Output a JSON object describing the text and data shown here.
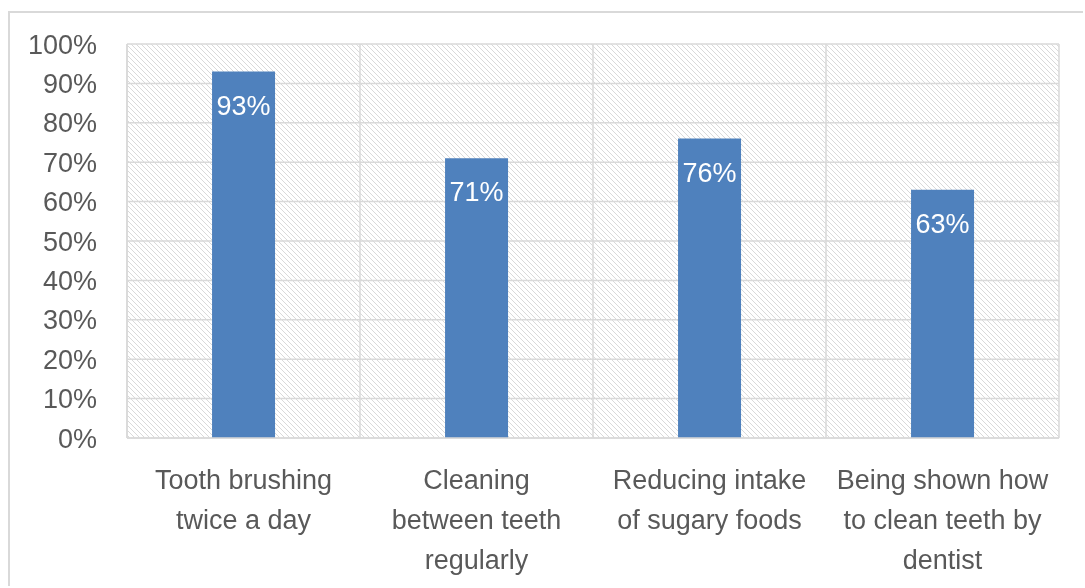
{
  "chart_data": {
    "type": "bar",
    "categories": [
      "Tooth brushing twice a day",
      "Cleaning between teeth regularly",
      "Reducing intake of sugary foods",
      "Being shown how to clean teeth by dentist"
    ],
    "values": [
      93,
      71,
      76,
      63
    ],
    "color": "#4f81bd",
    "value_labels": [
      "93%",
      "71%",
      "76%",
      "63%"
    ],
    "ylim": [
      0,
      100
    ],
    "yticks": [
      {
        "value": 0,
        "label": "0%"
      },
      {
        "value": 10,
        "label": "10%"
      },
      {
        "value": 20,
        "label": "20%"
      },
      {
        "value": 30,
        "label": "30%"
      },
      {
        "value": 40,
        "label": "40%"
      },
      {
        "value": 50,
        "label": "50%"
      },
      {
        "value": 60,
        "label": "60%"
      },
      {
        "value": 70,
        "label": "70%"
      },
      {
        "value": 80,
        "label": "80%"
      },
      {
        "value": 90,
        "label": "90%"
      },
      {
        "value": 100,
        "label": "100%"
      }
    ],
    "grid": true
  }
}
